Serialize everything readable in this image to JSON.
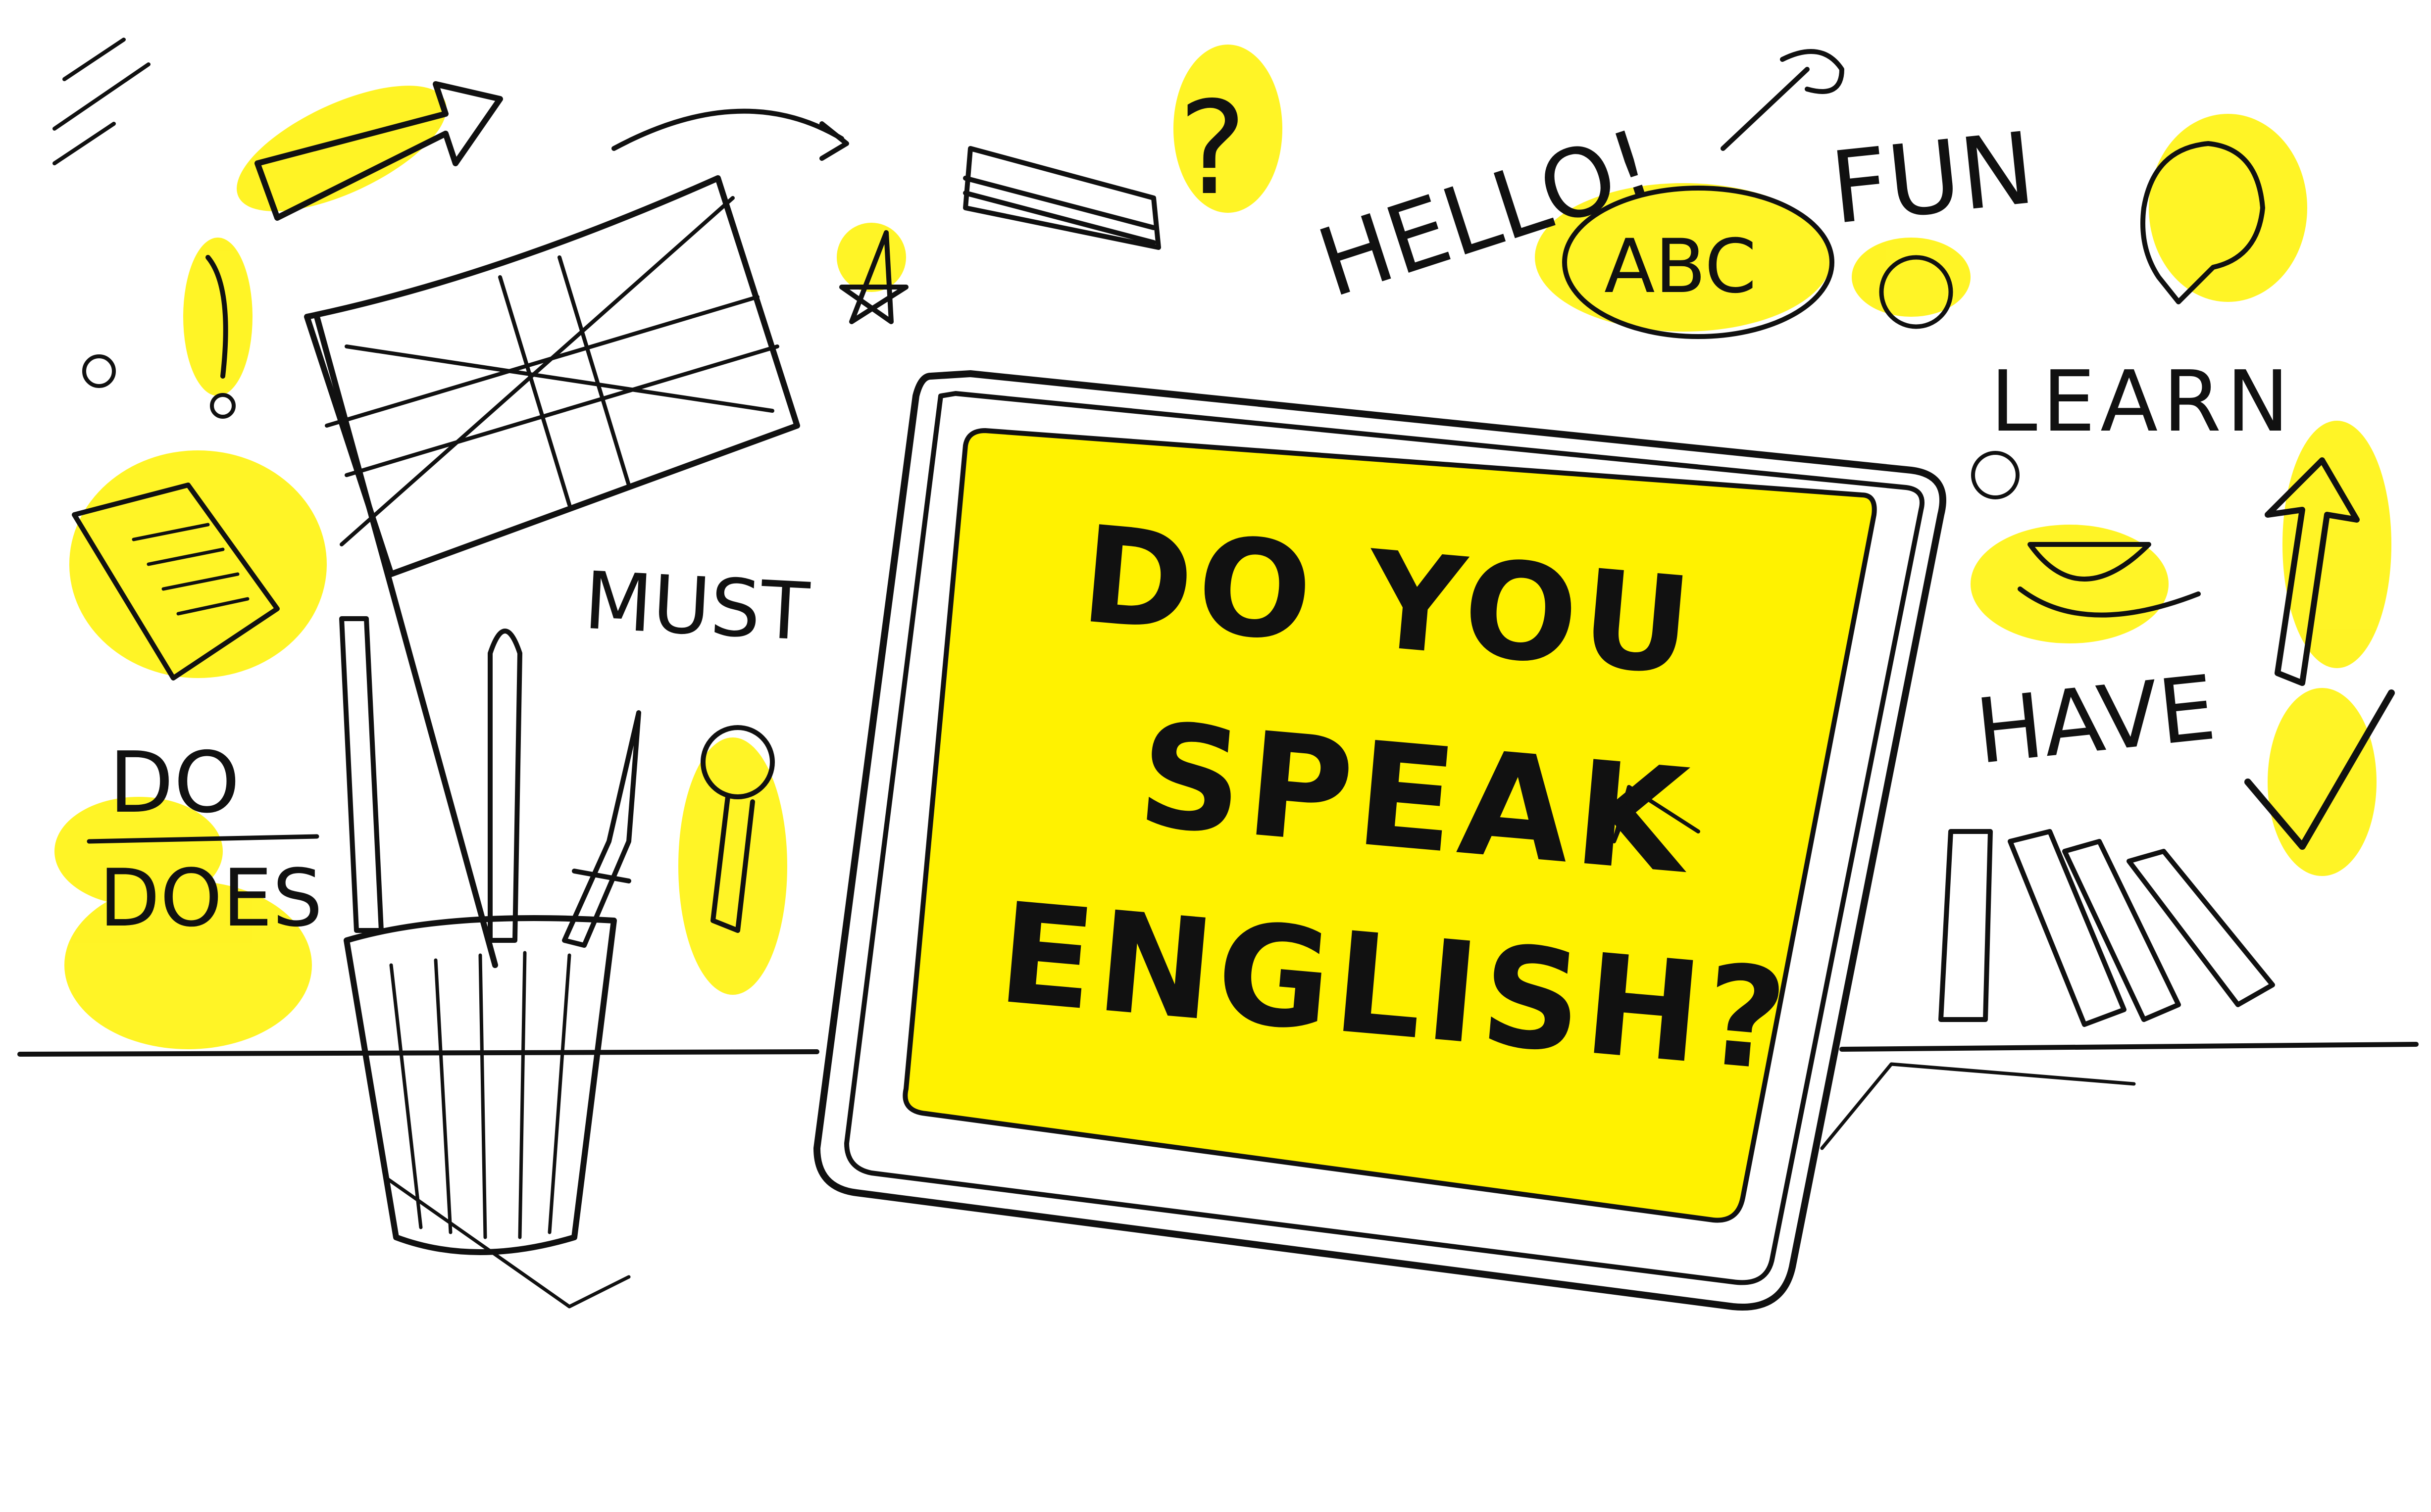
{
  "screen": {
    "line1": "DO YOU",
    "line2": "SPEAK",
    "line3": "ENGLISH?"
  },
  "words": {
    "hello": "HELLO!",
    "fun": "FUN",
    "abc": "ABC",
    "learn": "LEARN",
    "must": "MUST",
    "have": "HAVE",
    "do": "DO",
    "does": "DOES",
    "question": "?"
  },
  "colors": {
    "highlight": "#FFF200",
    "ink": "#111111",
    "background": "#FFFFFF"
  },
  "icons": [
    "arrow-icon",
    "flag-icon",
    "pencil-cup-icon",
    "tablet-icon",
    "magnifier-icon",
    "lightbulb-icon",
    "books-icon",
    "teacup-icon",
    "smiley-icon",
    "star-icon",
    "notepad-icon",
    "book-stack-icon",
    "pushpin-icon",
    "checkmark-icon",
    "flower-icon"
  ]
}
